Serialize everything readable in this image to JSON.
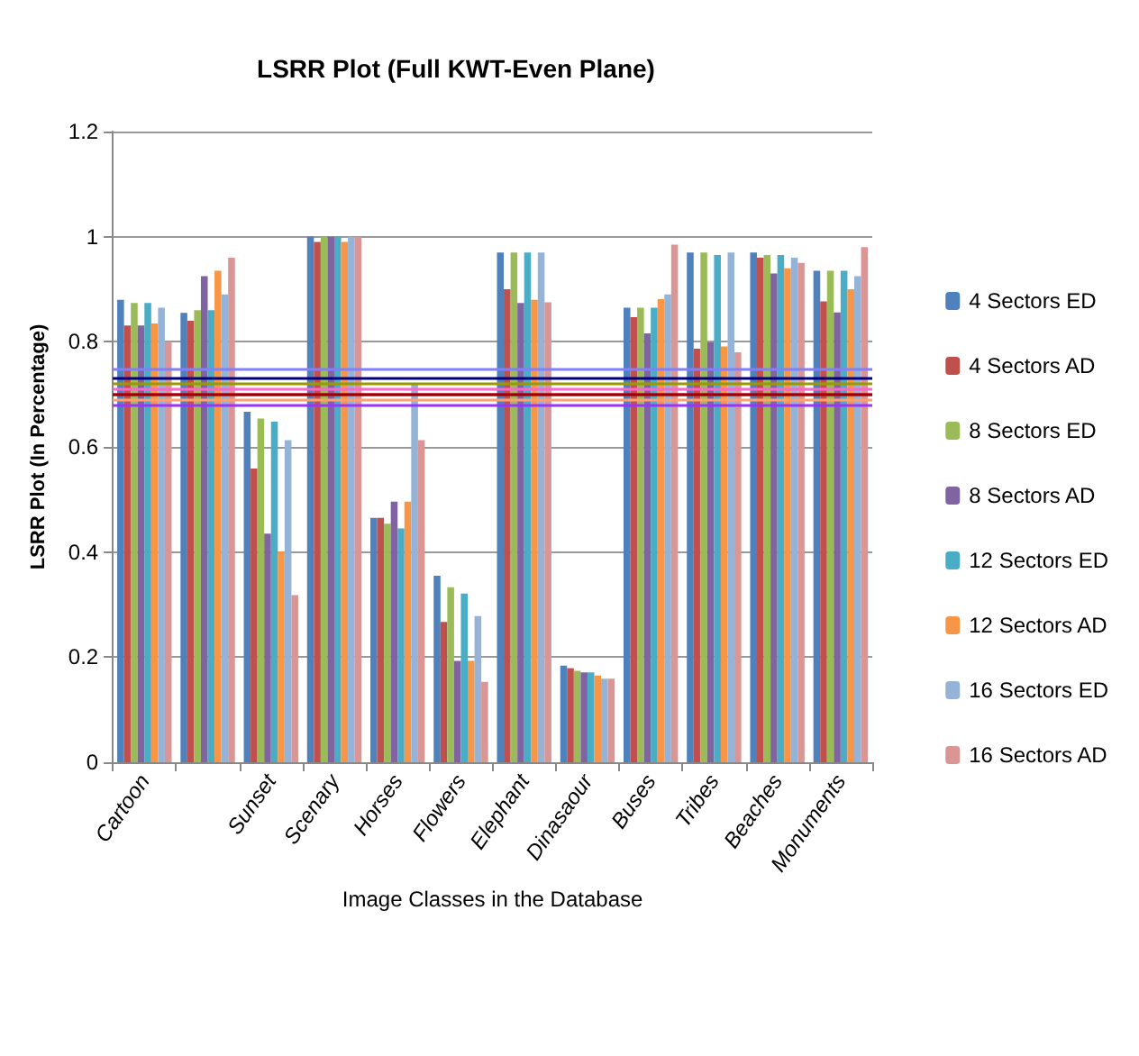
{
  "chart_data": {
    "type": "bar",
    "title": "LSRR Plot (Full KWT-Even Plane)",
    "xlabel": "Image Classes in the Database",
    "ylabel": "LSRR Plot (In Percentage)",
    "categories": [
      "Cartoon",
      null,
      "Sunset",
      "Scenary",
      "Horses",
      "Flowers",
      "Elephant",
      "Dinasaour",
      "Buses",
      "Tribes",
      "Beaches",
      "Monuments"
    ],
    "series": [
      {
        "name": "4 Sectors ED",
        "color": "#4f81bd",
        "values": [
          0.88,
          0.855,
          0.667,
          1.0,
          0.465,
          0.355,
          0.97,
          0.184,
          0.865,
          0.97,
          0.97,
          0.935
        ]
      },
      {
        "name": "4 Sectors AD",
        "color": "#c0504d",
        "values": [
          0.831,
          0.84,
          0.559,
          0.99,
          0.465,
          0.267,
          0.9,
          0.179,
          0.847,
          0.787,
          0.96,
          0.877
        ]
      },
      {
        "name": "8 Sectors ED",
        "color": "#9bbb59",
        "values": [
          0.874,
          0.86,
          0.654,
          1.0,
          0.454,
          0.333,
          0.97,
          0.174,
          0.865,
          0.97,
          0.965,
          0.935
        ]
      },
      {
        "name": "8 Sectors AD",
        "color": "#8064a2",
        "values": [
          0.831,
          0.925,
          0.435,
          1.0,
          0.496,
          0.193,
          0.874,
          0.171,
          0.816,
          0.799,
          0.93,
          0.856
        ]
      },
      {
        "name": "12 Sectors ED",
        "color": "#4bacc6",
        "values": [
          0.874,
          0.86,
          0.648,
          1.0,
          0.445,
          0.321,
          0.97,
          0.171,
          0.865,
          0.965,
          0.965,
          0.935
        ]
      },
      {
        "name": "12 Sectors AD",
        "color": "#f79646",
        "values": [
          0.835,
          0.935,
          0.401,
          0.99,
          0.496,
          0.193,
          0.88,
          0.165,
          0.881,
          0.791,
          0.94,
          0.9
        ]
      },
      {
        "name": "16 Sectors ED",
        "color": "#95b3d7",
        "values": [
          0.865,
          0.89,
          0.613,
          1.0,
          0.719,
          0.278,
          0.97,
          0.159,
          0.89,
          0.97,
          0.96,
          0.925
        ]
      },
      {
        "name": "16 Sectors AD",
        "color": "#d99694",
        "values": [
          0.8,
          0.96,
          0.318,
          1.0,
          0.613,
          0.153,
          0.875,
          0.159,
          0.985,
          0.78,
          0.95,
          0.98
        ]
      }
    ],
    "ref_lines": [
      {
        "axis": "y",
        "value": 0.75,
        "color": "#8080ff"
      },
      {
        "axis": "y",
        "value": 0.733,
        "color": "#000080"
      },
      {
        "axis": "y",
        "value": 0.721,
        "color": "#999900"
      },
      {
        "axis": "y",
        "value": 0.713,
        "color": "#ff66cc"
      },
      {
        "axis": "y",
        "value": 0.705,
        "color": "#ff0066"
      },
      {
        "axis": "y",
        "value": 0.698,
        "color": "#990000"
      },
      {
        "axis": "y",
        "value": 0.692,
        "color": "#ffa070"
      },
      {
        "axis": "y",
        "value": 0.676,
        "color": "#9933ff"
      }
    ],
    "ylim": [
      0,
      1.2
    ],
    "yticks": [
      0,
      0.2,
      0.4,
      0.6,
      0.8,
      1,
      1.2
    ],
    "grid": "y",
    "legend": "right"
  }
}
